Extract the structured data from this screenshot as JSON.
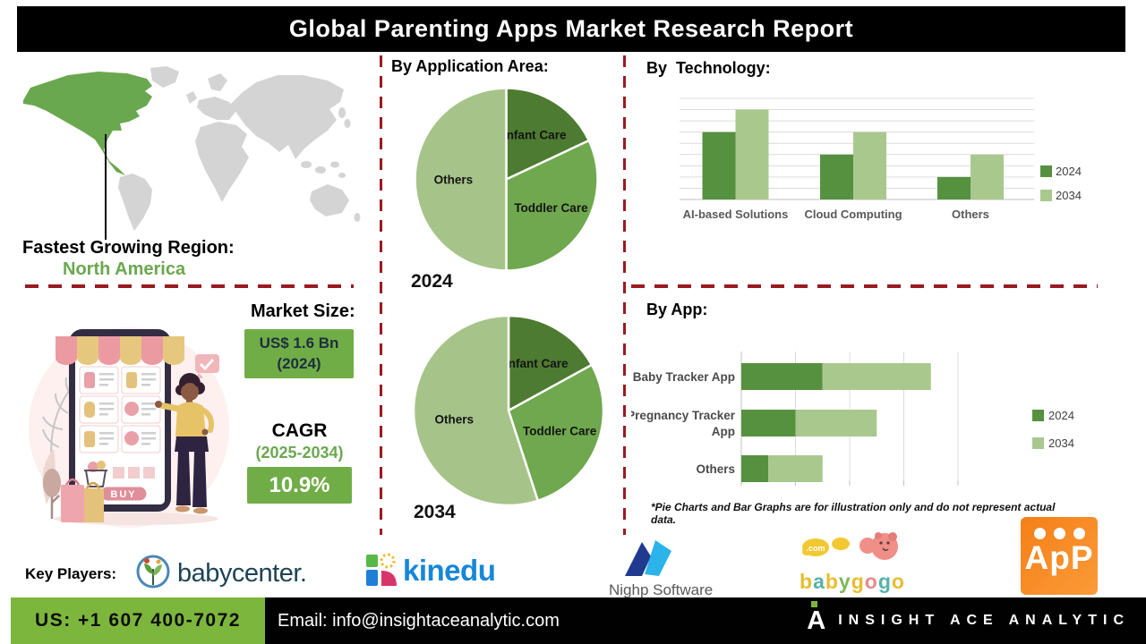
{
  "header": {
    "title": "Global Parenting Apps Market Research Report"
  },
  "colors": {
    "accent_green": "#6aa84f",
    "box_green": "#70ad47",
    "footer_green": "#7cb63c",
    "series_2024": "#569140",
    "series_2034": "#a9c88e",
    "pie_dark": "#4d7b31",
    "pie_mid": "#6fa84e",
    "pie_light": "#a6c489",
    "divider_red": "#9a1a20",
    "map_highlight": "#6aa84f",
    "map_base": "#d4d4d4",
    "app_logo_orange": "#f6881d"
  },
  "fastest_region": {
    "label": "Fastest Growing Region:",
    "value": "North America"
  },
  "market_size": {
    "label": "Market Size:",
    "value": "US$ 1.6 Bn",
    "year": "(2024)"
  },
  "cagr": {
    "label": "CAGR",
    "period": "(2025-2034)",
    "value": "10.9%"
  },
  "sections": {
    "application": {
      "title": "By Application Area:"
    },
    "technology": {
      "title": "By  Technology:"
    },
    "app": {
      "title": "By App:"
    }
  },
  "footnote": "*Pie Charts and Bar Graphs are for illustration only and do not represent actual data.",
  "chart_data": [
    {
      "id": "application-2024",
      "type": "pie",
      "title": "By Application Area:",
      "year_label": "2024",
      "units": "illustrative % share",
      "slices": [
        {
          "label": "Infant Care",
          "value": 18,
          "color": "#4d7b31"
        },
        {
          "label": "Toddler Care",
          "value": 32,
          "color": "#6fa84e"
        },
        {
          "label": "Others",
          "value": 50,
          "color": "#a6c489"
        }
      ]
    },
    {
      "id": "application-2034",
      "type": "pie",
      "title": "By Application Area:",
      "year_label": "2034",
      "units": "illustrative % share",
      "slices": [
        {
          "label": "Infant Care",
          "value": 17,
          "color": "#4d7b31"
        },
        {
          "label": "Toddler Care",
          "value": 28,
          "color": "#6fa84e"
        },
        {
          "label": "Others",
          "value": 55,
          "color": "#a6c489"
        }
      ]
    },
    {
      "id": "technology",
      "type": "bar",
      "title": "By  Technology:",
      "categories": [
        "AI-based Solutions",
        "Cloud Computing",
        "Others"
      ],
      "series": [
        {
          "name": "2024",
          "color": "#569140",
          "values": [
            6,
            4,
            2
          ]
        },
        {
          "name": "2034",
          "color": "#a9c88e",
          "values": [
            8,
            6,
            4
          ]
        }
      ],
      "ylim": [
        0,
        9
      ],
      "grid": true,
      "legend_position": "right",
      "units": "illustrative"
    },
    {
      "id": "by-app",
      "type": "stacked-hbar",
      "title": "By App:",
      "categories": [
        "Baby Tracker App",
        "Pregnancy Tracker App",
        "Others"
      ],
      "series": [
        {
          "name": "2024",
          "color": "#569140",
          "values": [
            1.5,
            1.0,
            0.5
          ]
        },
        {
          "name": "2034",
          "color": "#a9c88e",
          "values": [
            2.0,
            1.5,
            1.0
          ]
        }
      ],
      "xlim": [
        0,
        4
      ],
      "grid": true,
      "legend_position": "right",
      "units": "illustrative"
    }
  ],
  "illustration": {
    "buy_label": "BUY"
  },
  "key_players": {
    "label": "Key Players:",
    "players": [
      "BabyCenter",
      "Kinedu",
      "Nighp Software",
      "Babygogo",
      "APP"
    ]
  },
  "logos": {
    "babycenter_text": "babycenter.",
    "kinedu_text": "kinedu",
    "nighp_text": "Nighp Software",
    "app_text": "ApP"
  },
  "babygogo": {
    "text": "babygogo",
    "dotcom": ".com",
    "letter_colors": [
      "#e8bd2f",
      "#56b3a9",
      "#e8bd2f",
      "#7cb85c",
      "#e8bd2f",
      "#e88b8b",
      "#56b3a9",
      "#e8bd2f"
    ]
  },
  "footer": {
    "phone": "US: +1 607 400-7072",
    "email": "Email: info@insightaceanalytic.com",
    "brand": "INSIGHT ACE ANALYTIC",
    "brand_mark": "A"
  }
}
